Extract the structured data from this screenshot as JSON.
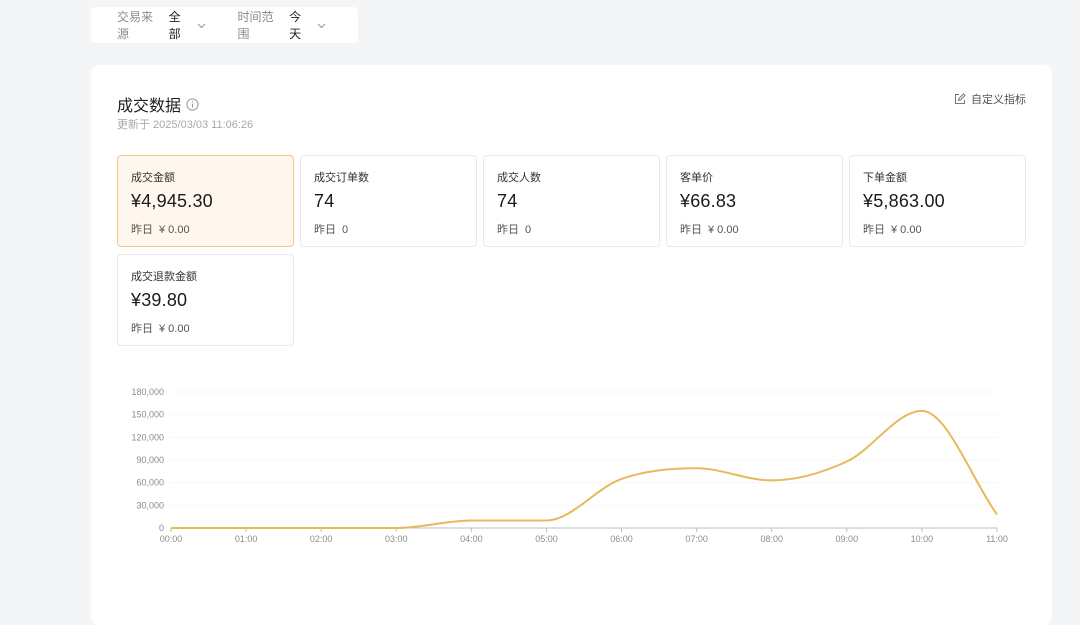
{
  "filters": [
    {
      "label": "交易来源",
      "value": "全部"
    },
    {
      "label": "时间范围",
      "value": "今天"
    }
  ],
  "panel": {
    "title": "成交数据",
    "updated": "更新于 2025/03/03 11:06:26",
    "custom_label": "自定义指标"
  },
  "cards": [
    {
      "label": "成交金额",
      "value": "¥4,945.30",
      "prev_label": "昨日",
      "prev_value": "¥ 0.00"
    },
    {
      "label": "成交订单数",
      "value": "74",
      "prev_label": "昨日",
      "prev_value": "0"
    },
    {
      "label": "成交人数",
      "value": "74",
      "prev_label": "昨日",
      "prev_value": "0"
    },
    {
      "label": "客单价",
      "value": "¥66.83",
      "prev_label": "昨日",
      "prev_value": "¥ 0.00"
    },
    {
      "label": "下单金额",
      "value": "¥5,863.00",
      "prev_label": "昨日",
      "prev_value": "¥ 0.00"
    },
    {
      "label": "成交退款金额",
      "value": "¥39.80",
      "prev_label": "昨日",
      "prev_value": "¥ 0.00"
    }
  ],
  "colors": {
    "line": "#e8b85c",
    "active_bg": "#fff6ee",
    "active_border": "#f0c987"
  },
  "chart_data": {
    "type": "line",
    "x": [
      "00:00",
      "01:00",
      "02:00",
      "03:00",
      "04:00",
      "05:00",
      "06:00",
      "07:00",
      "08:00",
      "09:00",
      "10:00",
      "11:00"
    ],
    "values": [
      0,
      0,
      0,
      0,
      10000,
      10000,
      65000,
      79000,
      63000,
      88000,
      155000,
      18000
    ],
    "yticks": [
      0,
      30000,
      60000,
      90000,
      120000,
      150000,
      180000
    ],
    "ytick_labels": [
      "0",
      "30,000",
      "60,000",
      "90,000",
      "120,000",
      "150,000",
      "180,000"
    ],
    "ylim": [
      0,
      180000
    ],
    "grid": true,
    "title": "",
    "xlabel": "",
    "ylabel": ""
  }
}
